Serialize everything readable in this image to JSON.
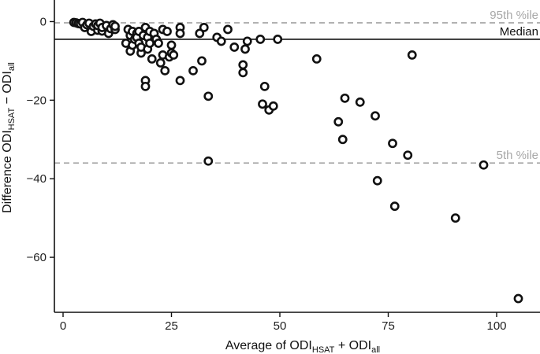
{
  "chart_data": {
    "type": "scatter",
    "xlabel": {
      "main": "Average of ODI",
      "sub1": "HSAT",
      "mid": " + ODI",
      "sub2": "all"
    },
    "ylabel": {
      "main": "Difference ODI",
      "sub1": "HSAT",
      "mid": " − ODI",
      "sub2": "all"
    },
    "xlim": [
      -2,
      110
    ],
    "ylim": [
      -74,
      5.5
    ],
    "xticks": [
      0,
      25,
      50,
      75,
      100
    ],
    "yticks": [
      0,
      -20,
      -40,
      -60
    ],
    "grid": false,
    "reference_lines": [
      {
        "label": "95th %ile",
        "y": -0.3,
        "style": "dashed",
        "color": "#a8a8a8"
      },
      {
        "label": "Median",
        "y": -4.5,
        "style": "solid",
        "color": "#111111"
      },
      {
        "label": "5th %ile",
        "y": -36,
        "style": "dashed",
        "color": "#a8a8a8"
      }
    ],
    "points": [
      [
        2.5,
        -0.2
      ],
      [
        3,
        -0.3
      ],
      [
        3.5,
        -0.5
      ],
      [
        4,
        -0.6
      ],
      [
        4.5,
        -0.2
      ],
      [
        5,
        -1.5
      ],
      [
        5.5,
        -0.8
      ],
      [
        6,
        -0.4
      ],
      [
        6.5,
        -2.5
      ],
      [
        7,
        -1.2
      ],
      [
        7.5,
        -0.6
      ],
      [
        8,
        -2.2
      ],
      [
        8,
        -1.0
      ],
      [
        8.5,
        -0.4
      ],
      [
        9,
        -2.4
      ],
      [
        9,
        -1.5
      ],
      [
        10,
        -1.0
      ],
      [
        10.5,
        -3.0
      ],
      [
        11,
        -1.8
      ],
      [
        11.5,
        -0.8
      ],
      [
        12,
        -2.0
      ],
      [
        12,
        -1.2
      ],
      [
        14.5,
        -5.5
      ],
      [
        15,
        -2.0
      ],
      [
        15.5,
        -3.5
      ],
      [
        15.5,
        -7.5
      ],
      [
        16,
        -2.5
      ],
      [
        16,
        -6.0
      ],
      [
        16.5,
        -4.5
      ],
      [
        17,
        -3.0
      ],
      [
        17,
        -4.0
      ],
      [
        17.5,
        -5.5
      ],
      [
        17.5,
        -2.5
      ],
      [
        18,
        -8.0
      ],
      [
        18,
        -6.5
      ],
      [
        18.5,
        -3.5
      ],
      [
        19,
        -1.5
      ],
      [
        19,
        -15.0
      ],
      [
        19,
        -16.5
      ],
      [
        19.5,
        -4.0
      ],
      [
        19.5,
        -7.0
      ],
      [
        20,
        -2.5
      ],
      [
        20,
        -5.5
      ],
      [
        20.5,
        -9.5
      ],
      [
        21,
        -3.0
      ],
      [
        21.5,
        -4.5
      ],
      [
        22,
        -5.5
      ],
      [
        22.5,
        -10.5
      ],
      [
        23,
        -2.0
      ],
      [
        23,
        -8.5
      ],
      [
        23.5,
        -12.5
      ],
      [
        24,
        -2.5
      ],
      [
        24.5,
        -9.0
      ],
      [
        25,
        -8.0
      ],
      [
        25,
        -6.0
      ],
      [
        25.5,
        -8.5
      ],
      [
        27,
        -1.5
      ],
      [
        27,
        -3.0
      ],
      [
        27,
        -15.0
      ],
      [
        30,
        -12.5
      ],
      [
        31.5,
        -3.0
      ],
      [
        32,
        -10.0
      ],
      [
        32.5,
        -1.5
      ],
      [
        33.5,
        -19.0
      ],
      [
        33.5,
        -35.5
      ],
      [
        35.5,
        -4.0
      ],
      [
        36.5,
        -5.0
      ],
      [
        38,
        -2.0
      ],
      [
        39.5,
        -6.5
      ],
      [
        41.5,
        -13.0
      ],
      [
        41.5,
        -11.0
      ],
      [
        42,
        -7.0
      ],
      [
        42.5,
        -5.0
      ],
      [
        45.5,
        -4.5
      ],
      [
        46,
        -21.0
      ],
      [
        46.5,
        -16.5
      ],
      [
        47.5,
        -22.5
      ],
      [
        48.5,
        -21.5
      ],
      [
        49.5,
        -4.5
      ],
      [
        58.5,
        -9.5
      ],
      [
        63.5,
        -25.5
      ],
      [
        64.5,
        -30.0
      ],
      [
        65,
        -19.5
      ],
      [
        68.5,
        -20.5
      ],
      [
        72,
        -24.0
      ],
      [
        72.5,
        -40.5
      ],
      [
        76,
        -31.0
      ],
      [
        76.5,
        -47.0
      ],
      [
        79.5,
        -34.0
      ],
      [
        80.5,
        -8.5
      ],
      [
        90.5,
        -50.0
      ],
      [
        97,
        -36.5
      ],
      [
        105,
        -70.5
      ]
    ]
  }
}
